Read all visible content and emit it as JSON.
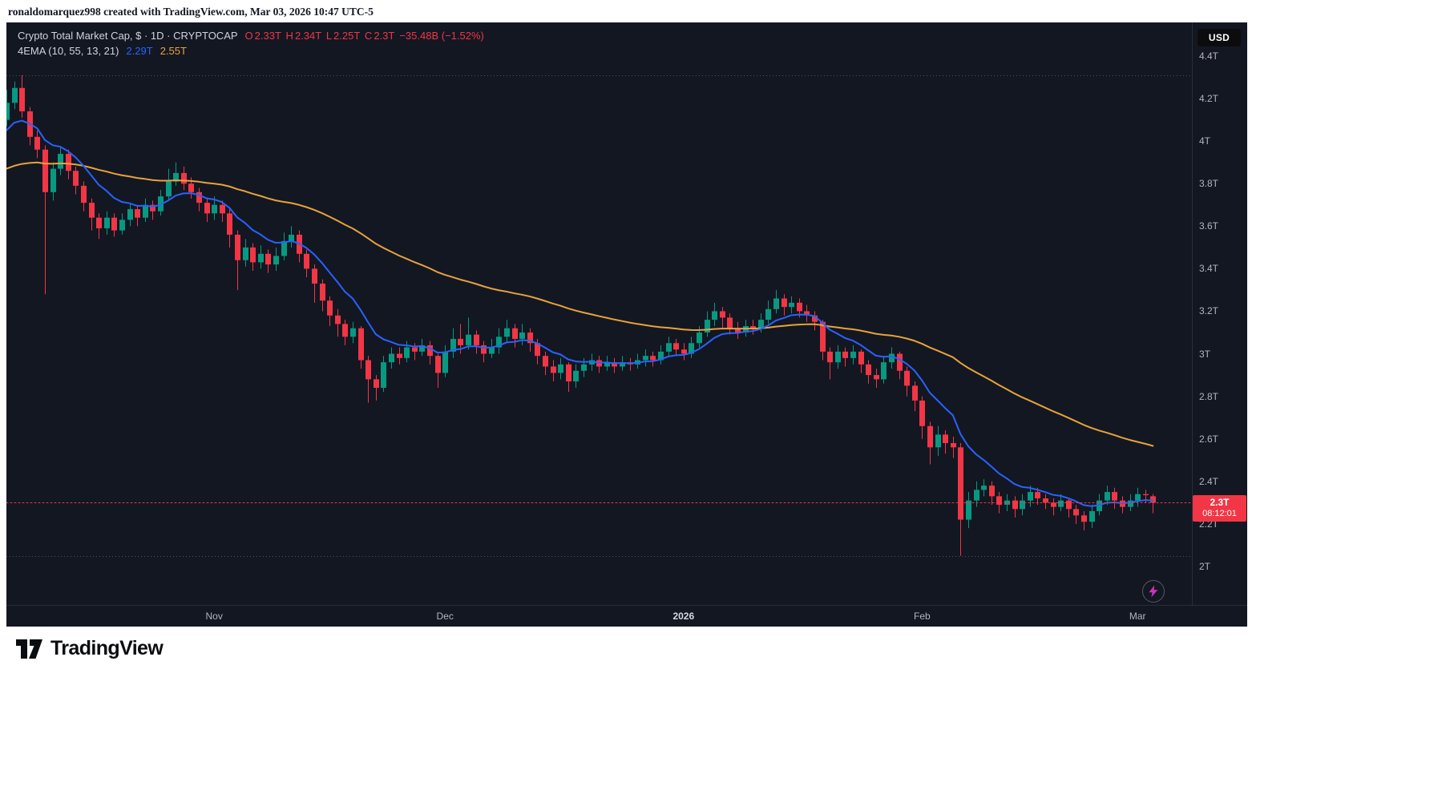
{
  "attribution": {
    "text": "ronaldomarquez998 created with TradingView.com, Mar 03, 2026 10:47 UTC-5"
  },
  "toolbar": {
    "currency_label": "USD"
  },
  "legend": {
    "title": "Crypto Total Market Cap, $ · 1D · CRYPTOCAP",
    "ohlc": {
      "open_label": "O",
      "open": "2.33T",
      "high_label": "H",
      "high": "2.34T",
      "low_label": "L",
      "low": "2.25T",
      "close_label": "C",
      "close": "2.3T",
      "change": "−35.48B (−1.52%)"
    },
    "indicator": {
      "name": "4EMA (10, 55, 13, 21)",
      "ema_fast": "2.29T",
      "ema_slow": "2.55T"
    }
  },
  "price_label": {
    "price": "2.3T",
    "countdown": "08:12:01"
  },
  "footer_logo": {
    "text": "TradingView"
  },
  "colors": {
    "background": "#131722",
    "up": "#089981",
    "down": "#f23645",
    "ema_fast": "#2962ff",
    "ema_slow": "#e8a33c",
    "axis_text": "#b2b5be",
    "legend_text": "#d1d4dc",
    "range_dotted": "rgba(148,152,161,0.45)"
  },
  "price_axis": {
    "ticks": [
      {
        "label": "4.4T",
        "value": 4.4
      },
      {
        "label": "4.2T",
        "value": 4.2
      },
      {
        "label": "4T",
        "value": 4.0
      },
      {
        "label": "3.8T",
        "value": 3.8
      },
      {
        "label": "3.6T",
        "value": 3.6
      },
      {
        "label": "3.4T",
        "value": 3.4
      },
      {
        "label": "3.2T",
        "value": 3.2
      },
      {
        "label": "3T",
        "value": 3.0
      },
      {
        "label": "2.8T",
        "value": 2.8
      },
      {
        "label": "2.6T",
        "value": 2.6
      },
      {
        "label": "2.4T",
        "value": 2.4
      },
      {
        "label": "2.2T",
        "value": 2.2
      },
      {
        "label": "2T",
        "value": 2.0
      }
    ]
  },
  "time_axis": {
    "labels": [
      {
        "label": "Nov",
        "index": 27,
        "emphasis": false
      },
      {
        "label": "Dec",
        "index": 57,
        "emphasis": false
      },
      {
        "label": "2026",
        "index": 88,
        "emphasis": true
      },
      {
        "label": "Feb",
        "index": 119,
        "emphasis": false
      },
      {
        "label": "Mar",
        "index": 147,
        "emphasis": false
      }
    ]
  },
  "chart_data": {
    "type": "candlestick",
    "title": "Crypto Total Market Cap",
    "symbol": "CRYPTOCAP",
    "interval": "1D",
    "currency": "USD",
    "units": "trillions USD",
    "y_range": [
      1.819,
      4.558
    ],
    "x_count": 150,
    "candles": {
      "open": [
        4.1,
        4.18,
        4.25,
        4.14,
        4.02,
        3.96,
        3.76,
        3.87,
        3.94,
        3.86,
        3.79,
        3.71,
        3.64,
        3.59,
        3.64,
        3.58,
        3.63,
        3.68,
        3.64,
        3.7,
        3.67,
        3.74,
        3.81,
        3.85,
        3.8,
        3.76,
        3.71,
        3.66,
        3.7,
        3.66,
        3.56,
        3.44,
        3.5,
        3.43,
        3.47,
        3.42,
        3.46,
        3.53,
        3.56,
        3.47,
        3.4,
        3.33,
        3.25,
        3.18,
        3.14,
        3.08,
        3.12,
        2.97,
        2.88,
        2.84,
        2.96,
        3.0,
        2.98,
        3.03,
        3.01,
        3.04,
        2.99,
        2.91,
        3.01,
        3.07,
        3.04,
        3.09,
        3.04,
        3.0,
        3.03,
        3.08,
        3.12,
        3.07,
        3.1,
        3.05,
        2.99,
        2.94,
        2.91,
        2.95,
        2.87,
        2.92,
        2.95,
        2.97,
        2.94,
        2.96,
        2.94,
        2.96,
        2.95,
        2.97,
        2.99,
        2.97,
        3.01,
        3.05,
        3.02,
        3.0,
        3.05,
        3.1,
        3.16,
        3.2,
        3.17,
        3.12,
        3.1,
        3.13,
        3.12,
        3.16,
        3.21,
        3.26,
        3.22,
        3.24,
        3.2,
        3.18,
        3.15,
        3.01,
        2.96,
        3.01,
        2.98,
        3.01,
        2.95,
        2.9,
        2.88,
        2.96,
        3.0,
        2.92,
        2.85,
        2.78,
        2.66,
        2.56,
        2.62,
        2.58,
        2.56,
        2.22,
        2.31,
        2.36,
        2.38,
        2.33,
        2.29,
        2.31,
        2.27,
        2.31,
        2.35,
        2.32,
        2.3,
        2.28,
        2.31,
        2.27,
        2.24,
        2.21,
        2.26,
        2.31,
        2.35,
        2.31,
        2.28,
        2.31,
        2.34,
        2.33
      ],
      "high": [
        4.24,
        4.28,
        4.31,
        4.16,
        4.05,
        3.98,
        3.9,
        3.97,
        3.96,
        3.88,
        3.81,
        3.73,
        3.66,
        3.67,
        3.66,
        3.66,
        3.71,
        3.7,
        3.73,
        3.72,
        3.77,
        3.87,
        3.9,
        3.88,
        3.83,
        3.78,
        3.73,
        3.74,
        3.72,
        3.68,
        3.58,
        3.54,
        3.52,
        3.51,
        3.49,
        3.5,
        3.57,
        3.6,
        3.58,
        3.49,
        3.42,
        3.35,
        3.27,
        3.21,
        3.16,
        3.15,
        3.13,
        2.99,
        2.9,
        2.99,
        3.03,
        3.03,
        3.06,
        3.05,
        3.07,
        3.06,
        3.0,
        3.04,
        3.12,
        3.14,
        3.17,
        3.11,
        3.06,
        3.07,
        3.12,
        3.16,
        3.14,
        3.14,
        3.12,
        3.07,
        3.01,
        2.97,
        2.98,
        2.96,
        2.95,
        2.98,
        3.0,
        2.99,
        2.99,
        2.98,
        2.99,
        2.98,
        3.0,
        3.02,
        3.01,
        3.04,
        3.08,
        3.07,
        3.05,
        3.08,
        3.13,
        3.2,
        3.24,
        3.22,
        3.19,
        3.15,
        3.16,
        3.16,
        3.19,
        3.25,
        3.3,
        3.28,
        3.27,
        3.26,
        3.23,
        3.2,
        3.16,
        3.03,
        3.04,
        3.03,
        3.04,
        3.02,
        2.97,
        2.93,
        2.99,
        3.03,
        3.01,
        2.94,
        2.87,
        2.8,
        2.68,
        2.66,
        2.64,
        2.61,
        2.58,
        2.35,
        2.4,
        2.41,
        2.4,
        2.35,
        2.34,
        2.33,
        2.34,
        2.38,
        2.37,
        2.34,
        2.32,
        2.34,
        2.32,
        2.29,
        2.26,
        2.29,
        2.34,
        2.38,
        2.37,
        2.33,
        2.34,
        2.37,
        2.36,
        2.34
      ],
      "low": [
        4.07,
        4.15,
        4.11,
        3.98,
        3.92,
        3.28,
        3.72,
        3.84,
        3.82,
        3.75,
        3.67,
        3.58,
        3.54,
        3.56,
        3.55,
        3.56,
        3.6,
        3.6,
        3.62,
        3.63,
        3.65,
        3.72,
        3.79,
        3.77,
        3.73,
        3.67,
        3.62,
        3.63,
        3.62,
        3.5,
        3.3,
        3.41,
        3.39,
        3.4,
        3.38,
        3.39,
        3.44,
        3.5,
        3.43,
        3.36,
        3.24,
        3.2,
        3.13,
        3.08,
        3.04,
        3.05,
        2.93,
        2.77,
        2.78,
        2.82,
        2.93,
        2.95,
        2.96,
        2.97,
        2.99,
        2.95,
        2.84,
        2.89,
        2.98,
        3.0,
        3.02,
        3.0,
        2.96,
        2.98,
        3.0,
        3.05,
        3.03,
        3.04,
        3.01,
        2.95,
        2.9,
        2.87,
        2.88,
        2.82,
        2.84,
        2.89,
        2.92,
        2.91,
        2.92,
        2.91,
        2.92,
        2.92,
        2.93,
        2.94,
        2.94,
        2.95,
        2.99,
        2.99,
        2.97,
        2.98,
        3.03,
        3.08,
        3.13,
        3.12,
        3.09,
        3.07,
        3.08,
        3.09,
        3.1,
        3.14,
        3.19,
        3.18,
        3.19,
        3.17,
        3.15,
        3.11,
        2.97,
        2.88,
        2.93,
        2.94,
        2.95,
        2.91,
        2.86,
        2.84,
        2.86,
        2.93,
        2.88,
        2.8,
        2.73,
        2.6,
        2.48,
        2.52,
        2.53,
        2.51,
        2.05,
        2.18,
        2.28,
        2.33,
        2.29,
        2.25,
        2.26,
        2.23,
        2.24,
        2.28,
        2.29,
        2.27,
        2.24,
        2.26,
        2.23,
        2.2,
        2.17,
        2.18,
        2.24,
        2.29,
        2.27,
        2.25,
        2.26,
        2.28,
        2.3,
        2.25
      ],
      "close": [
        4.18,
        4.25,
        4.14,
        4.02,
        3.96,
        3.76,
        3.87,
        3.94,
        3.86,
        3.79,
        3.71,
        3.64,
        3.59,
        3.64,
        3.58,
        3.63,
        3.68,
        3.64,
        3.7,
        3.67,
        3.74,
        3.81,
        3.85,
        3.8,
        3.76,
        3.71,
        3.66,
        3.7,
        3.66,
        3.56,
        3.44,
        3.5,
        3.43,
        3.47,
        3.42,
        3.46,
        3.53,
        3.56,
        3.47,
        3.4,
        3.33,
        3.25,
        3.18,
        3.14,
        3.08,
        3.12,
        2.97,
        2.88,
        2.84,
        2.96,
        3.0,
        2.98,
        3.03,
        3.01,
        3.04,
        2.99,
        2.91,
        3.01,
        3.07,
        3.04,
        3.09,
        3.04,
        3.0,
        3.03,
        3.08,
        3.12,
        3.07,
        3.1,
        3.05,
        2.99,
        2.94,
        2.91,
        2.95,
        2.87,
        2.92,
        2.95,
        2.97,
        2.94,
        2.96,
        2.94,
        2.96,
        2.95,
        2.97,
        2.99,
        2.97,
        3.01,
        3.05,
        3.02,
        3.0,
        3.05,
        3.1,
        3.16,
        3.2,
        3.17,
        3.12,
        3.1,
        3.13,
        3.12,
        3.16,
        3.21,
        3.26,
        3.22,
        3.24,
        3.2,
        3.18,
        3.15,
        3.01,
        2.96,
        3.01,
        2.98,
        3.01,
        2.95,
        2.9,
        2.88,
        2.96,
        3.0,
        2.92,
        2.85,
        2.78,
        2.66,
        2.56,
        2.62,
        2.58,
        2.56,
        2.22,
        2.31,
        2.36,
        2.38,
        2.33,
        2.29,
        2.31,
        2.27,
        2.31,
        2.35,
        2.32,
        2.3,
        2.28,
        2.31,
        2.27,
        2.24,
        2.21,
        2.26,
        2.31,
        2.35,
        2.31,
        2.28,
        2.31,
        2.34,
        2.335,
        2.3
      ]
    },
    "overlays": [
      {
        "name": "EMA 10",
        "period": 10,
        "seed": 4.05,
        "color": "#2962ff",
        "width": 2
      },
      {
        "name": "EMA 55",
        "period": 55,
        "seed": 3.87,
        "color": "#e8a33c",
        "width": 2
      }
    ],
    "markers": {
      "last_close": 2.3,
      "visible_high": 4.31,
      "visible_low": 2.05
    }
  }
}
